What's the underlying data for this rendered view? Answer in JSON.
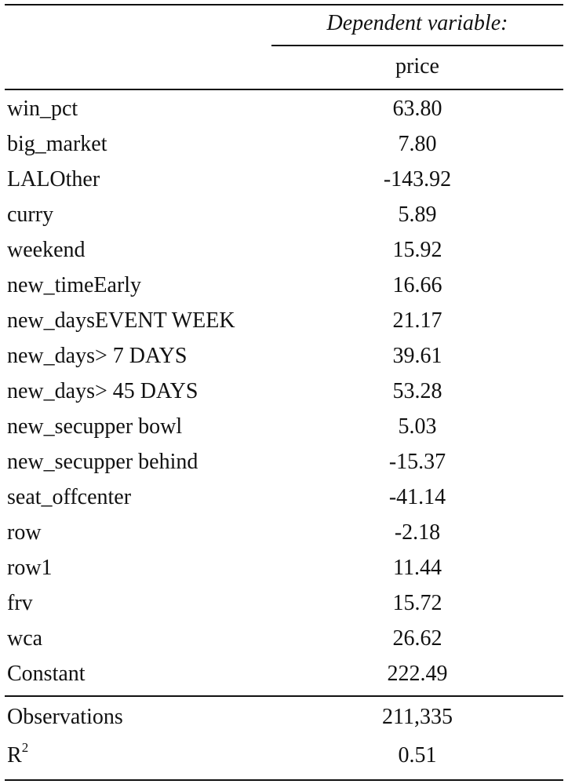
{
  "header": {
    "dependent_variable": "Dependent variable:",
    "column": "price"
  },
  "rows": [
    {
      "label": "win_pct",
      "value": "63.80"
    },
    {
      "label": "big_market",
      "value": "7.80"
    },
    {
      "label": "LALOther",
      "value": "-143.92"
    },
    {
      "label": "curry",
      "value": "5.89"
    },
    {
      "label": "weekend",
      "value": "15.92"
    },
    {
      "label": "new_timeEarly",
      "value": "16.66"
    },
    {
      "label": "new_daysEVENT WEEK",
      "value": "21.17"
    },
    {
      "label": "new_days> 7 DAYS",
      "value": "39.61"
    },
    {
      "label": "new_days> 45 DAYS",
      "value": "53.28"
    },
    {
      "label": "new_secupper bowl",
      "value": "5.03"
    },
    {
      "label": "new_secupper behind",
      "value": "-15.37"
    },
    {
      "label": "seat_offcenter",
      "value": "-41.14"
    },
    {
      "label": "row",
      "value": "-2.18"
    },
    {
      "label": "row1",
      "value": "11.44"
    },
    {
      "label": "frv",
      "value": "15.72"
    },
    {
      "label": "wca",
      "value": "26.62"
    },
    {
      "label": "Constant",
      "value": "222.49"
    }
  ],
  "stats": {
    "observations_label": "Observations",
    "observations_value": "211,335",
    "r2_label": "R",
    "r2_sup": "2",
    "r2_value": "0.51"
  }
}
